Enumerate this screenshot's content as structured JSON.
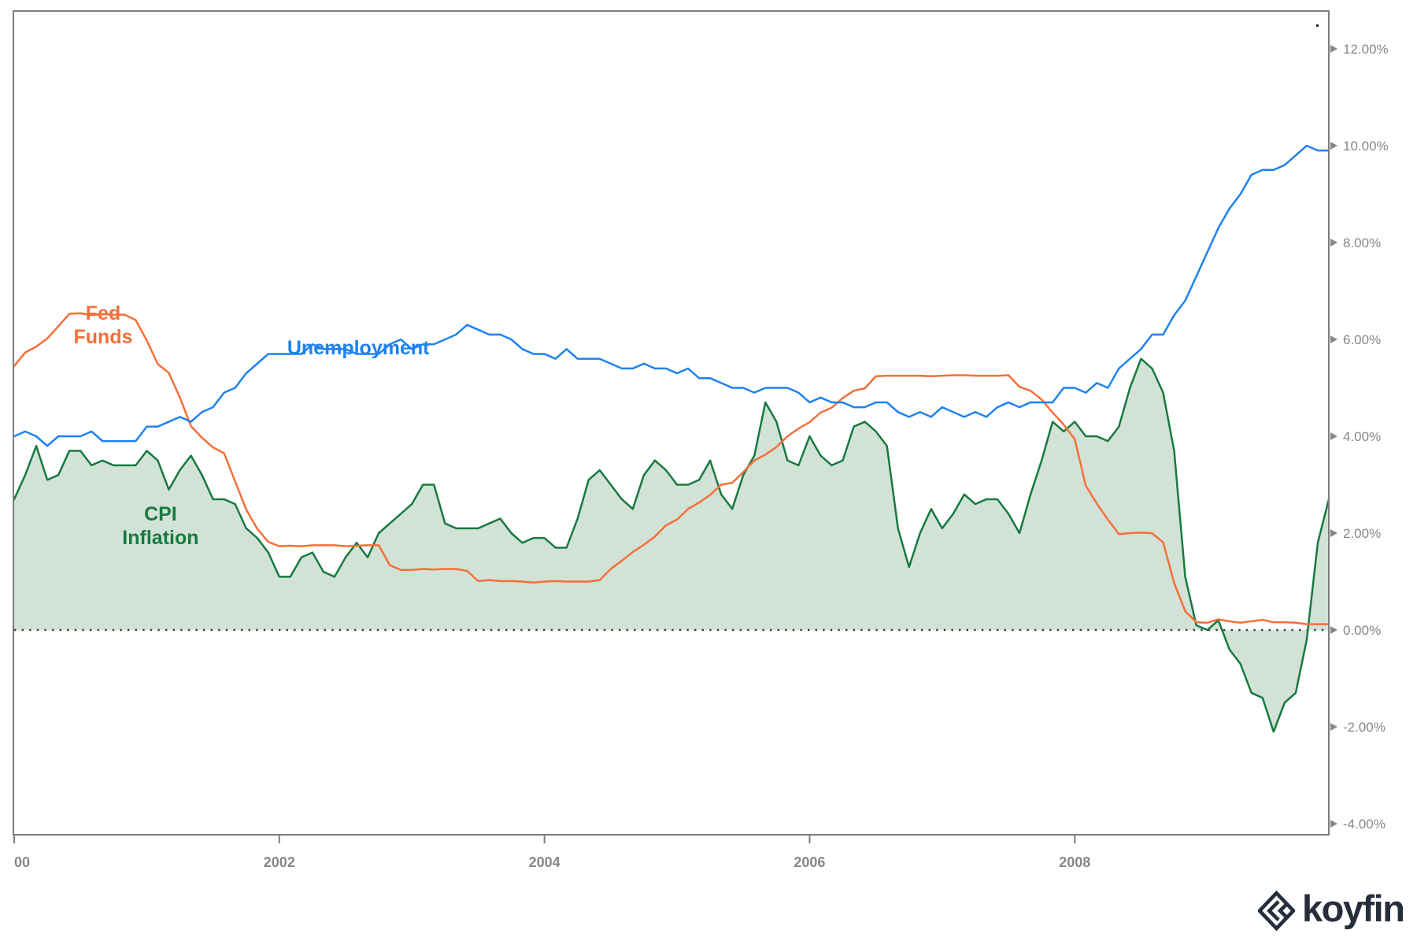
{
  "branding": {
    "logo_text": "koyfin"
  },
  "chart_data": {
    "type": "line",
    "title": "",
    "x_unit": "month",
    "x_start_year": 2000,
    "points_per_year": 12,
    "x_range": [
      "2000-01",
      "2009-12"
    ],
    "grid": false,
    "legend_position": "inline-annotations",
    "colors": {
      "frame": "#7d7d7d",
      "tick_text": "#878787",
      "zero_line": "#3d3d3d",
      "background": "#ffffff"
    },
    "y_axis": {
      "side": "right",
      "ticks": [
        {
          "value": 12,
          "label": "12.00%"
        },
        {
          "value": 10,
          "label": "10.00%"
        },
        {
          "value": 8,
          "label": "8.00%"
        },
        {
          "value": 6,
          "label": "6.00%"
        },
        {
          "value": 4,
          "label": "4.00%"
        },
        {
          "value": 2,
          "label": "2.00%"
        },
        {
          "value": 0,
          "label": "0.00%"
        },
        {
          "value": -2,
          "label": "-2.00%"
        },
        {
          "value": -4,
          "label": "-4.00%"
        }
      ],
      "range": [
        -4.2,
        12.8
      ]
    },
    "x_axis": {
      "ticks": [
        {
          "year": 2000,
          "label": "00"
        },
        {
          "year": 2002,
          "label": "2002"
        },
        {
          "year": 2004,
          "label": "2004"
        },
        {
          "year": 2006,
          "label": "2006"
        },
        {
          "year": 2008,
          "label": "2008"
        }
      ]
    },
    "series": [
      {
        "name": "CPI Inflation",
        "key": "cpi-inflation",
        "z": 1,
        "color": "#177a40",
        "area": true,
        "fill": "#d3e2d7",
        "values": [
          2.7,
          3.2,
          3.8,
          3.1,
          3.2,
          3.7,
          3.7,
          3.4,
          3.5,
          3.4,
          3.4,
          3.4,
          3.7,
          3.5,
          2.9,
          3.3,
          3.6,
          3.2,
          2.7,
          2.7,
          2.6,
          2.1,
          1.9,
          1.6,
          1.1,
          1.1,
          1.5,
          1.6,
          1.2,
          1.1,
          1.5,
          1.8,
          1.5,
          2.0,
          2.2,
          2.4,
          2.6,
          3.0,
          3.0,
          2.2,
          2.1,
          2.1,
          2.1,
          2.2,
          2.3,
          2.0,
          1.8,
          1.9,
          1.9,
          1.7,
          1.7,
          2.3,
          3.1,
          3.3,
          3.0,
          2.7,
          2.5,
          3.2,
          3.5,
          3.3,
          3.0,
          3.0,
          3.1,
          3.5,
          2.8,
          2.5,
          3.2,
          3.6,
          4.7,
          4.3,
          3.5,
          3.4,
          4.0,
          3.6,
          3.4,
          3.5,
          4.2,
          4.3,
          4.1,
          3.8,
          2.1,
          1.3,
          2.0,
          2.5,
          2.1,
          2.4,
          2.8,
          2.6,
          2.7,
          2.7,
          2.4,
          2.0,
          2.8,
          3.5,
          4.3,
          4.1,
          4.3,
          4.0,
          4.0,
          3.9,
          4.2,
          5.0,
          5.6,
          5.4,
          4.9,
          3.7,
          1.1,
          0.1,
          0.0,
          0.2,
          -0.4,
          -0.7,
          -1.3,
          -1.4,
          -2.1,
          -1.5,
          -1.3,
          -0.2,
          1.8,
          2.7
        ]
      },
      {
        "name": "Fed Funds",
        "key": "fed-funds",
        "z": 2,
        "color": "#f4703a",
        "area": false,
        "values": [
          5.45,
          5.73,
          5.85,
          6.02,
          6.27,
          6.53,
          6.54,
          6.5,
          6.52,
          6.51,
          6.51,
          6.4,
          5.98,
          5.49,
          5.31,
          4.8,
          4.21,
          3.97,
          3.77,
          3.65,
          3.07,
          2.49,
          2.09,
          1.82,
          1.73,
          1.74,
          1.73,
          1.75,
          1.75,
          1.75,
          1.73,
          1.74,
          1.75,
          1.75,
          1.34,
          1.24,
          1.24,
          1.26,
          1.25,
          1.26,
          1.26,
          1.22,
          1.01,
          1.03,
          1.01,
          1.01,
          1.0,
          0.98,
          1.0,
          1.01,
          1.0,
          1.0,
          1.0,
          1.03,
          1.26,
          1.43,
          1.61,
          1.76,
          1.93,
          2.16,
          2.28,
          2.5,
          2.63,
          2.79,
          3.0,
          3.04,
          3.26,
          3.5,
          3.62,
          3.78,
          4.0,
          4.16,
          4.29,
          4.49,
          4.59,
          4.79,
          4.94,
          4.99,
          5.24,
          5.25,
          5.25,
          5.25,
          5.25,
          5.24,
          5.25,
          5.26,
          5.26,
          5.25,
          5.25,
          5.25,
          5.26,
          5.02,
          4.94,
          4.76,
          4.49,
          4.24,
          3.94,
          2.98,
          2.61,
          2.28,
          1.98,
          2.0,
          2.01,
          2.0,
          1.81,
          0.97,
          0.39,
          0.16,
          0.15,
          0.22,
          0.18,
          0.15,
          0.18,
          0.21,
          0.16,
          0.16,
          0.15,
          0.12,
          0.12,
          0.12
        ]
      },
      {
        "name": "Unemployment",
        "key": "unemployment",
        "z": 3,
        "color": "#1f82f0",
        "area": false,
        "values": [
          4.0,
          4.1,
          4.0,
          3.8,
          4.0,
          4.0,
          4.0,
          4.1,
          3.9,
          3.9,
          3.9,
          3.9,
          4.2,
          4.2,
          4.3,
          4.4,
          4.3,
          4.5,
          4.6,
          4.9,
          5.0,
          5.3,
          5.5,
          5.7,
          5.7,
          5.7,
          5.7,
          5.9,
          5.8,
          5.8,
          5.8,
          5.7,
          5.7,
          5.7,
          5.9,
          6.0,
          5.8,
          5.9,
          5.9,
          6.0,
          6.1,
          6.3,
          6.2,
          6.1,
          6.1,
          6.0,
          5.8,
          5.7,
          5.7,
          5.6,
          5.8,
          5.6,
          5.6,
          5.6,
          5.5,
          5.4,
          5.4,
          5.5,
          5.4,
          5.4,
          5.3,
          5.4,
          5.2,
          5.2,
          5.1,
          5.0,
          5.0,
          4.9,
          5.0,
          5.0,
          5.0,
          4.9,
          4.7,
          4.8,
          4.7,
          4.7,
          4.6,
          4.6,
          4.7,
          4.7,
          4.5,
          4.4,
          4.5,
          4.4,
          4.6,
          4.5,
          4.4,
          4.5,
          4.4,
          4.6,
          4.7,
          4.6,
          4.7,
          4.7,
          4.7,
          5.0,
          5.0,
          4.9,
          5.1,
          5.0,
          5.4,
          5.6,
          5.8,
          6.1,
          6.1,
          6.5,
          6.8,
          7.3,
          7.8,
          8.3,
          8.7,
          9.0,
          9.4,
          9.5,
          9.5,
          9.6,
          9.8,
          10.0,
          9.9,
          9.9
        ]
      }
    ],
    "annotations": [
      {
        "key": "fed-funds",
        "lines": [
          "Fed",
          "Funds"
        ],
        "x_year": 2000.671,
        "y_value": 6.31,
        "color": "#f4703a"
      },
      {
        "key": "unemployment",
        "lines": [
          "Unemployment"
        ],
        "x_year": 2002.596,
        "y_value": 5.84,
        "color": "#1f82f0"
      },
      {
        "key": "cpi-inflation",
        "lines": [
          "CPI",
          "Inflation"
        ],
        "x_year": 2001.104,
        "y_value": 2.16,
        "color": "#177a40"
      }
    ]
  }
}
